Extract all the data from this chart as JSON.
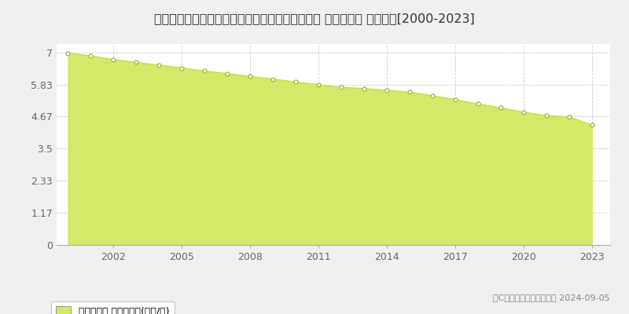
{
  "title": "京都府宮津市字由良小字上良１０２６番ほか２筆 基準地価格 地価推移[2000-2023]",
  "years": [
    2000,
    2001,
    2002,
    2003,
    2004,
    2005,
    2006,
    2007,
    2008,
    2009,
    2010,
    2011,
    2012,
    2013,
    2014,
    2015,
    2016,
    2017,
    2018,
    2019,
    2020,
    2021,
    2022,
    2023
  ],
  "values": [
    6.97,
    6.87,
    6.73,
    6.63,
    6.53,
    6.43,
    6.32,
    6.22,
    6.12,
    6.02,
    5.92,
    5.82,
    5.72,
    5.68,
    5.62,
    5.55,
    5.42,
    5.28,
    5.12,
    4.98,
    4.82,
    4.7,
    4.65,
    4.35
  ],
  "yticks": [
    0,
    1.17,
    2.33,
    3.5,
    4.67,
    5.83,
    7
  ],
  "ylim": [
    0,
    7.3
  ],
  "xlim": [
    1999.5,
    2023.8
  ],
  "xticks": [
    2002,
    2005,
    2008,
    2011,
    2014,
    2017,
    2020,
    2023
  ],
  "fill_color": "#d4e96a",
  "line_color": "#c5df50",
  "marker_color": "#ffffff",
  "marker_edge_color": "#a8bc3a",
  "grid_color": "#cccccc",
  "background_color": "#f0f0f0",
  "plot_bg_color": "#ffffff",
  "legend_label": "基準地価格 平均坪単価(万円/坪)",
  "copyright_text": "（C）土地価格ドットコム 2024-09-05",
  "title_fontsize": 11.5,
  "tick_fontsize": 9,
  "legend_fontsize": 9,
  "copyright_fontsize": 8
}
